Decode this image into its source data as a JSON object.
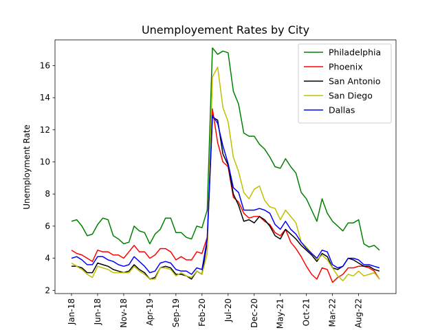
{
  "chart_data": {
    "type": "line",
    "title": "Unemployement Rates by City",
    "xlabel": "",
    "ylabel": "Unemployment Rate",
    "ylim": [
      1.8,
      17.6
    ],
    "yticks": [
      2,
      4,
      6,
      8,
      10,
      12,
      14,
      16
    ],
    "ytick_labels": [
      "2",
      "4",
      "6",
      "8",
      "10",
      "12",
      "14",
      "16"
    ],
    "xtick_labels": [
      "Jan-18",
      "Jun-18",
      "Nov-18",
      "Apr-19",
      "Sep-19",
      "Feb-20",
      "Jul-20",
      "Dec-20",
      "May-21",
      "Oct-21",
      "Mar-22",
      "Aug-22"
    ],
    "xtick_index": [
      0,
      5,
      10,
      15,
      20,
      25,
      30,
      35,
      40,
      45,
      50,
      55
    ],
    "x": [
      "Jan-18",
      "Feb-18",
      "Mar-18",
      "Apr-18",
      "May-18",
      "Jun-18",
      "Jul-18",
      "Aug-18",
      "Sep-18",
      "Oct-18",
      "Nov-18",
      "Dec-18",
      "Jan-19",
      "Feb-19",
      "Mar-19",
      "Apr-19",
      "May-19",
      "Jun-19",
      "Jul-19",
      "Aug-19",
      "Sep-19",
      "Oct-19",
      "Nov-19",
      "Dec-19",
      "Jan-20",
      "Feb-20",
      "Mar-20",
      "Apr-20",
      "May-20",
      "Jun-20",
      "Jul-20",
      "Aug-20",
      "Sep-20",
      "Oct-20",
      "Nov-20",
      "Dec-20",
      "Jan-21",
      "Feb-21",
      "Mar-21",
      "Apr-21",
      "May-21",
      "Jun-21",
      "Jul-21",
      "Aug-21",
      "Sep-21",
      "Oct-21",
      "Nov-21",
      "Dec-21",
      "Jan-22",
      "Feb-22",
      "Mar-22",
      "Apr-22",
      "May-22",
      "Jun-22",
      "Jul-22",
      "Aug-22",
      "Sep-22",
      "Oct-22",
      "Nov-22",
      "Dec-22"
    ],
    "grid": false,
    "legend_position": "top-right",
    "series": [
      {
        "name": "Philadelphia",
        "color": "#008000",
        "values": [
          6.3,
          6.4,
          6.0,
          5.4,
          5.5,
          6.1,
          6.5,
          6.4,
          5.4,
          5.2,
          4.9,
          5.0,
          6.0,
          5.7,
          5.6,
          4.9,
          5.5,
          5.8,
          6.5,
          6.5,
          5.6,
          5.6,
          5.3,
          5.2,
          6.0,
          5.9,
          7.0,
          17.1,
          16.7,
          16.9,
          16.8,
          14.4,
          13.6,
          11.8,
          11.6,
          11.6,
          11.1,
          10.8,
          10.3,
          9.7,
          9.6,
          10.2,
          9.7,
          9.3,
          8.1,
          7.7,
          7.0,
          6.3,
          7.7,
          6.8,
          6.3,
          6.0,
          5.7,
          6.2,
          6.2,
          6.4,
          4.9,
          4.7,
          4.8,
          4.5
        ]
      },
      {
        "name": "Phoenix",
        "color": "#ff0000",
        "values": [
          4.5,
          4.3,
          4.2,
          4.0,
          3.8,
          4.5,
          4.4,
          4.4,
          4.2,
          4.2,
          4.0,
          4.4,
          4.8,
          4.4,
          4.4,
          4.0,
          4.2,
          4.6,
          4.6,
          4.4,
          3.9,
          4.1,
          3.9,
          3.9,
          4.4,
          4.3,
          5.3,
          13.3,
          11.2,
          10.0,
          9.7,
          7.8,
          7.5,
          6.8,
          6.5,
          6.6,
          6.6,
          6.3,
          6.1,
          5.6,
          5.4,
          5.8,
          5.0,
          4.6,
          4.1,
          3.5,
          3.0,
          2.7,
          3.4,
          3.3,
          2.5,
          2.8,
          3.0,
          3.4,
          3.4,
          3.5,
          3.5,
          3.4,
          3.2,
          2.7
        ]
      },
      {
        "name": "San Antonio",
        "color": "#000000",
        "values": [
          3.5,
          3.5,
          3.4,
          3.1,
          3.1,
          3.7,
          3.6,
          3.5,
          3.3,
          3.2,
          3.1,
          3.2,
          3.6,
          3.3,
          3.1,
          2.7,
          2.8,
          3.4,
          3.5,
          3.4,
          3.0,
          3.0,
          2.9,
          2.7,
          3.2,
          3.0,
          5.0,
          12.8,
          12.6,
          10.5,
          9.8,
          8.0,
          7.3,
          6.3,
          6.4,
          6.2,
          6.6,
          6.4,
          6.0,
          5.4,
          5.2,
          5.8,
          5.5,
          5.2,
          4.8,
          4.5,
          4.2,
          3.8,
          4.3,
          4.1,
          3.4,
          3.3,
          3.5,
          4.0,
          3.9,
          3.7,
          3.5,
          3.5,
          3.3,
          3.2
        ]
      },
      {
        "name": "San Diego",
        "color": "#bfbf00",
        "values": [
          3.7,
          3.5,
          3.3,
          3.0,
          2.8,
          3.5,
          3.4,
          3.3,
          3.1,
          3.1,
          3.1,
          3.1,
          3.5,
          3.2,
          3.0,
          2.7,
          2.7,
          3.4,
          3.4,
          3.3,
          2.9,
          3.1,
          2.9,
          2.8,
          3.2,
          3.0,
          4.3,
          15.3,
          15.9,
          13.4,
          12.5,
          10.3,
          9.4,
          8.1,
          7.7,
          8.3,
          8.5,
          7.6,
          7.2,
          7.1,
          6.4,
          7.0,
          6.6,
          6.2,
          5.0,
          4.7,
          4.3,
          3.9,
          4.2,
          3.9,
          3.4,
          2.9,
          2.6,
          3.0,
          2.9,
          3.2,
          2.9,
          3.0,
          3.1,
          2.7
        ]
      },
      {
        "name": "Dallas",
        "color": "#0000ff",
        "values": [
          4.0,
          4.1,
          3.9,
          3.6,
          3.6,
          4.1,
          4.1,
          3.9,
          3.8,
          3.6,
          3.5,
          3.6,
          4.1,
          3.8,
          3.5,
          3.1,
          3.2,
          3.7,
          3.8,
          3.7,
          3.3,
          3.2,
          3.2,
          3.0,
          3.4,
          3.3,
          5.2,
          12.9,
          12.4,
          11.0,
          9.9,
          8.4,
          8.1,
          7.0,
          7.0,
          7.0,
          7.1,
          7.0,
          6.8,
          6.1,
          5.8,
          6.3,
          5.8,
          5.5,
          5.0,
          4.6,
          4.3,
          4.0,
          4.5,
          4.4,
          3.6,
          3.4,
          3.5,
          4.0,
          4.0,
          3.9,
          3.6,
          3.6,
          3.5,
          3.4
        ]
      }
    ]
  }
}
